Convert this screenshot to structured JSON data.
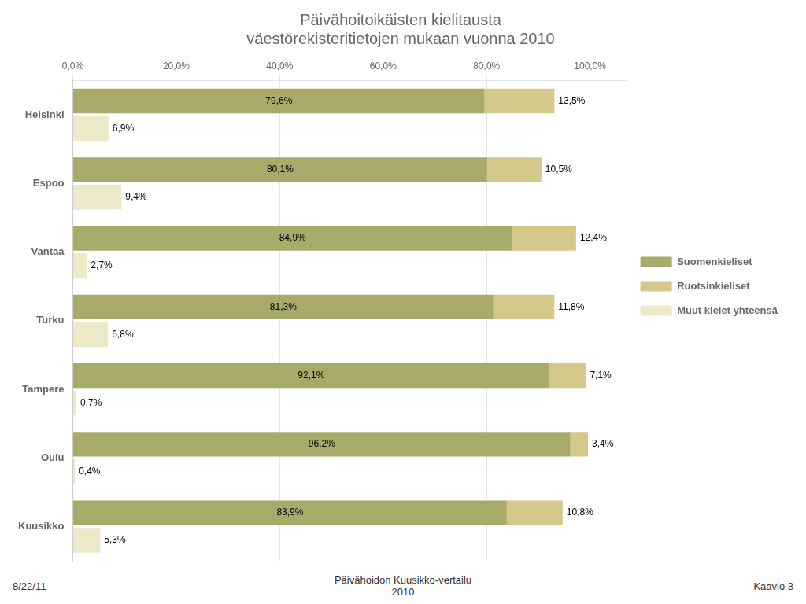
{
  "chart_data": {
    "type": "bar",
    "orientation": "horizontal",
    "stacked": true,
    "title": "Päivähoitoikäisten kielitausta\nväestörekisteritietojen mukaan vuonna 2010",
    "categories": [
      "Helsinki",
      "Espoo",
      "Vantaa",
      "Turku",
      "Tampere",
      "Oulu",
      "Kuusikko"
    ],
    "series": [
      {
        "name": "Suomenkieliset",
        "color": "#a8aa6a",
        "values": [
          79.6,
          80.1,
          84.9,
          81.3,
          92.1,
          96.2,
          83.9
        ],
        "value_labels": [
          "79,6%",
          "80,1%",
          "84,9%",
          "81,3%",
          "92,1%",
          "96,2%",
          "83,9%"
        ]
      },
      {
        "name": "Ruotsinkieliset",
        "color": "#d4c98a",
        "values": [
          13.5,
          10.5,
          12.4,
          11.8,
          7.1,
          3.4,
          10.8
        ],
        "value_labels": [
          "13,5%",
          "10,5%",
          "12,4%",
          "11,8%",
          "7,1%",
          "3,4%",
          "10,8%"
        ]
      },
      {
        "name": "Muut kielet yhteensä",
        "color": "#ede8c8",
        "values": [
          6.9,
          9.4,
          2.7,
          6.8,
          0.7,
          0.4,
          5.3
        ],
        "value_labels": [
          "6,9%",
          "9,4%",
          "2,7%",
          "6,8%",
          "0,7%",
          "0,4%",
          "5,3%"
        ]
      }
    ],
    "xlim": [
      0,
      107
    ],
    "xticks": [
      {
        "value": 0,
        "label": "0,0%"
      },
      {
        "value": 20,
        "label": "20,0%"
      },
      {
        "value": 40,
        "label": "40,0%"
      },
      {
        "value": 60,
        "label": "60,0%"
      },
      {
        "value": 80,
        "label": "80,0%"
      },
      {
        "value": 100,
        "label": "100,0%"
      }
    ],
    "grid": true,
    "legend": "right",
    "data_labels": true,
    "annotations": [
      "8/22/11",
      "Päivähoidon Kuusikko-vertailu\n2010",
      "Kaavio 3"
    ]
  }
}
